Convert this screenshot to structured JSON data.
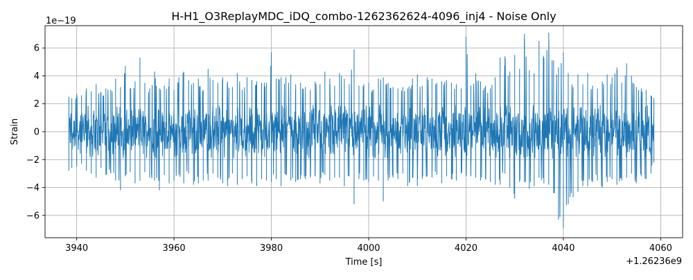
{
  "chart_data": {
    "type": "line",
    "title": "H-H1_O3ReplayMDC_iDQ_combo-1262362624-4096_inj4 - Noise Only",
    "xlabel": "Time [s]",
    "ylabel": "Strain",
    "x_offset_text": "+1.26236e9",
    "y_scale_text": "1e−19",
    "xlim": [
      3933.5,
      4064.5
    ],
    "ylim": [
      -7.6,
      7.6
    ],
    "x_ticks": [
      3940,
      3960,
      3980,
      4000,
      4020,
      4040,
      4060
    ],
    "x_tick_labels": [
      "3940",
      "3960",
      "3980",
      "4000",
      "4020",
      "4040",
      "4060"
    ],
    "y_ticks": [
      -6,
      -4,
      -2,
      0,
      2,
      4,
      6
    ],
    "y_tick_labels": [
      "−6",
      "−4",
      "−2",
      "0",
      "2",
      "4",
      "6"
    ],
    "grid": true,
    "series": [
      {
        "color": "#1f77b4",
        "x_range": [
          3938.4,
          4058.6
        ],
        "envelope": {
          "x": [
            3938.4,
            3939,
            3940,
            3941,
            3942,
            3943,
            3944,
            3945,
            3946,
            3947,
            3948,
            3949,
            3950,
            3951,
            3952,
            3953,
            3954,
            3955,
            3956,
            3957,
            3958,
            3959,
            3960,
            3961,
            3962,
            3963,
            3964,
            3965,
            3966,
            3967,
            3968,
            3969,
            3970,
            3971,
            3972,
            3973,
            3974,
            3975,
            3976,
            3977,
            3978,
            3979,
            3980,
            3981,
            3982,
            3983,
            3984,
            3985,
            3986,
            3987,
            3988,
            3989,
            3990,
            3991,
            3992,
            3993,
            3994,
            3995,
            3996,
            3997,
            3998,
            3999,
            4000,
            4001,
            4002,
            4003,
            4004,
            4005,
            4006,
            4007,
            4008,
            4009,
            4010,
            4011,
            4012,
            4013,
            4014,
            4015,
            4016,
            4017,
            4018,
            4019,
            4020,
            4021,
            4022,
            4023,
            4024,
            4025,
            4026,
            4027,
            4028,
            4029,
            4030,
            4031,
            4032,
            4033,
            4034,
            4035,
            4036,
            4037,
            4038,
            4039,
            4040,
            4041,
            4042,
            4043,
            4044,
            4045,
            4046,
            4047,
            4048,
            4049,
            4050,
            4051,
            4052,
            4053,
            4054,
            4055,
            4056,
            4057,
            4058,
            4058.6
          ],
          "max": [
            2.5,
            2.4,
            2.7,
            2.6,
            3.1,
            2.9,
            3.4,
            2.8,
            3.1,
            3.0,
            3.8,
            3.2,
            4.7,
            3.1,
            3.6,
            5.3,
            3.5,
            3.1,
            4.3,
            3.1,
            3.3,
            3.8,
            3.0,
            3.9,
            4.3,
            3.7,
            3.5,
            3.8,
            3.0,
            4.5,
            3.7,
            3.5,
            3.9,
            3.6,
            3.2,
            4.2,
            3.0,
            3.9,
            3.7,
            3.6,
            3.5,
            3.5,
            5.7,
            3.8,
            3.9,
            3.9,
            4.1,
            3.4,
            3.5,
            3.2,
            3.0,
            3.6,
            3.4,
            4.3,
            3.8,
            3.3,
            4.2,
            3.8,
            3.4,
            5.9,
            3.3,
            3.4,
            3.5,
            3.0,
            3.8,
            3.9,
            3.5,
            3.2,
            3.1,
            3.2,
            3.1,
            3.8,
            4.1,
            3.3,
            3.9,
            3.8,
            3.5,
            3.6,
            3.7,
            3.5,
            3.4,
            3.1,
            6.8,
            3.3,
            4.2,
            3.6,
            3.3,
            3.1,
            3.9,
            5.3,
            5.4,
            4.3,
            5.5,
            4.5,
            7.0,
            4.4,
            4.2,
            6.5,
            5.3,
            7.1,
            5.1,
            4.6,
            5.7,
            4.2,
            3.2,
            4.1,
            3.4,
            4.2,
            3.3,
            3.1,
            3.6,
            4.1,
            3.9,
            4.6,
            3.5,
            4.9,
            4.0,
            3.2,
            3.1,
            3.0,
            2.6,
            2.4
          ],
          "min": [
            -2.8,
            -2.6,
            -2.5,
            -2.3,
            -2.8,
            -3.0,
            -3.3,
            -2.6,
            -3.1,
            -3.0,
            -3.5,
            -4.2,
            -3.2,
            -2.9,
            -3.7,
            -3.5,
            -2.9,
            -3.3,
            -3.5,
            -4.2,
            -3.1,
            -3.7,
            -3.5,
            -3.1,
            -3.7,
            -3.0,
            -3.8,
            -3.7,
            -3.5,
            -3.5,
            -3.0,
            -3.3,
            -3.7,
            -3.9,
            -3.0,
            -3.8,
            -3.4,
            -3.2,
            -3.7,
            -3.9,
            -3.4,
            -3.5,
            -3.6,
            -3.4,
            -3.9,
            -3.1,
            -3.5,
            -3.6,
            -3.4,
            -3.4,
            -3.3,
            -3.2,
            -3.7,
            -3.1,
            -3.5,
            -3.3,
            -3.3,
            -3.9,
            -3.2,
            -5.2,
            -3.4,
            -3.5,
            -3.6,
            -3.2,
            -3.5,
            -5.0,
            -3.5,
            -3.3,
            -3.4,
            -3.0,
            -3.9,
            -3.3,
            -3.9,
            -3.4,
            -3.2,
            -3.3,
            -3.1,
            -3.7,
            -3.2,
            -3.4,
            -3.5,
            -3.0,
            -3.2,
            -3.2,
            -3.3,
            -3.5,
            -3.4,
            -3.6,
            -3.8,
            -3.8,
            -3.0,
            -4.0,
            -4.8,
            -3.6,
            -3.6,
            -4.1,
            -3.9,
            -3.3,
            -3.7,
            -3.8,
            -4.4,
            -6.3,
            -6.9,
            -5.2,
            -4.7,
            -4.3,
            -3.9,
            -3.9,
            -3.6,
            -3.5,
            -4.0,
            -3.6,
            -3.4,
            -3.8,
            -3.5,
            -3.3,
            -3.0,
            -3.7,
            -3.2,
            -3.4,
            -3.0,
            -2.2
          ]
        }
      }
    ]
  }
}
